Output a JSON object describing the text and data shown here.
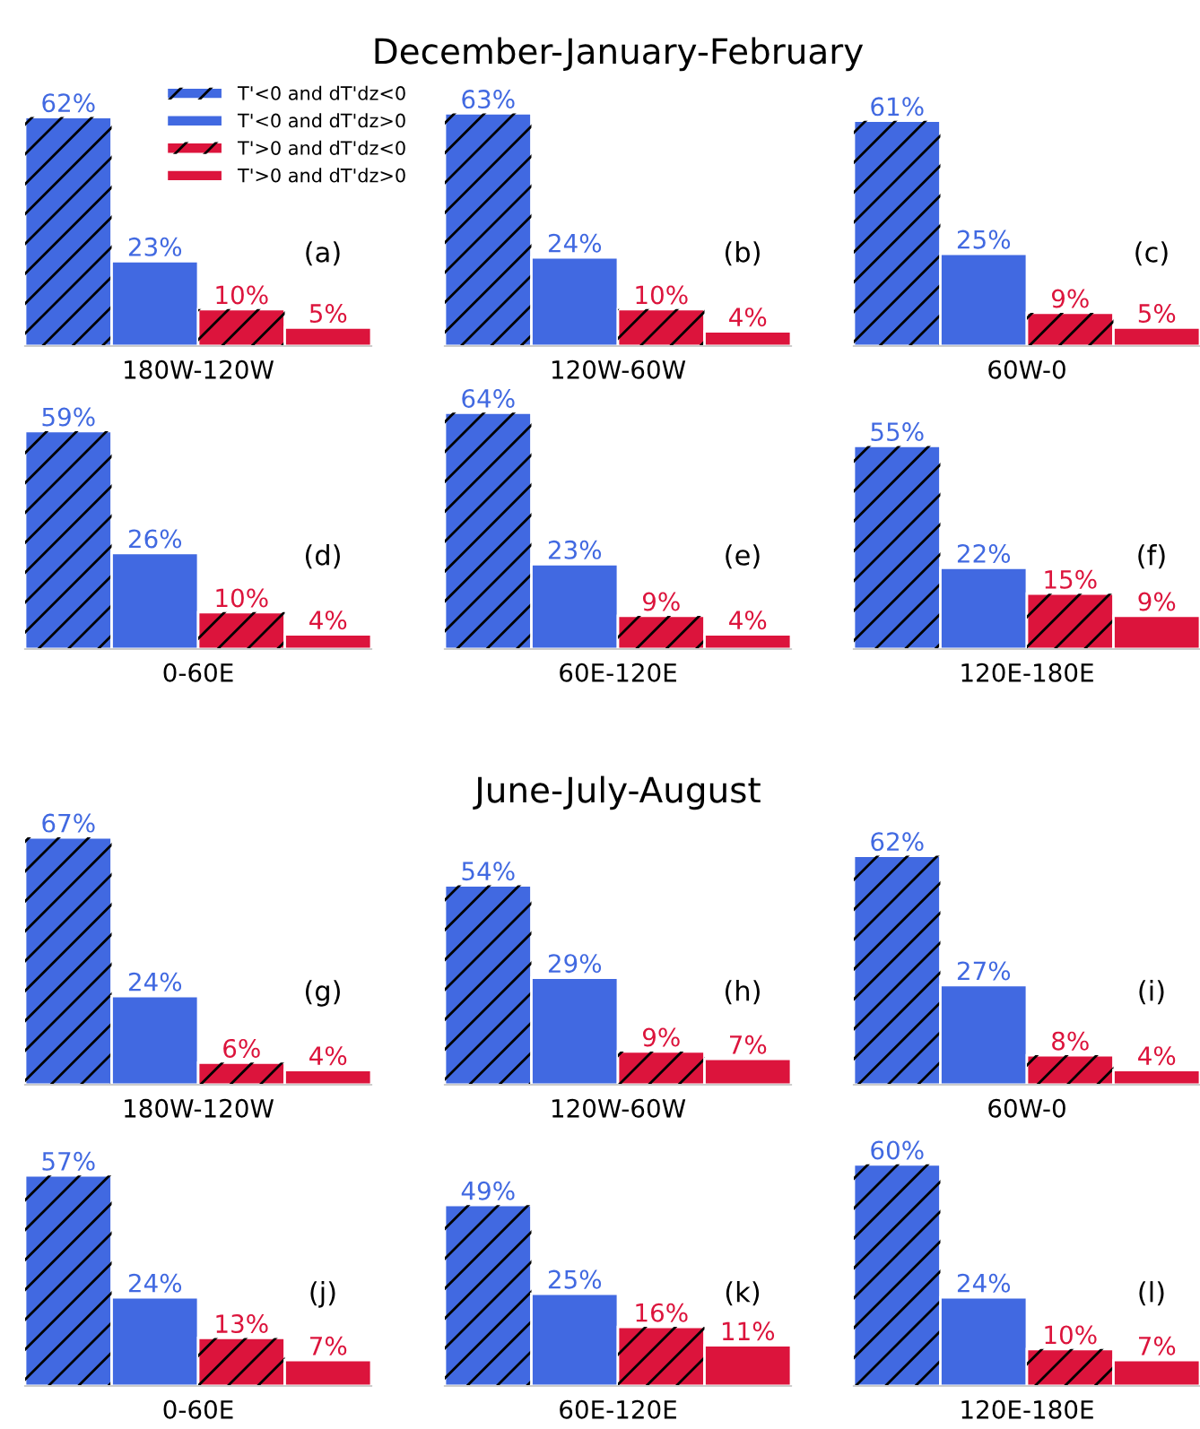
{
  "chart_data": [
    {
      "type": "bar",
      "xlabel": "180W-120W",
      "annotations": [
        "(a)"
      ],
      "categories": [
        null
      ],
      "legend": "top right",
      "series": [
        {
          "name": "T'<0 and dT'dz<0",
          "color": "#4169e1",
          "values": [
            62
          ],
          "value_labels": [
            "62%"
          ]
        },
        {
          "name": "T'<0 and dT'dz>0",
          "color": "#4169e1",
          "values": [
            23
          ],
          "value_labels": [
            "23%"
          ]
        },
        {
          "name": "T'>0 and dT'dz<0",
          "color": "#dc143c",
          "values": [
            10
          ],
          "value_labels": [
            "10%"
          ]
        },
        {
          "name": "T'>0 and dT'dz>0",
          "color": "#dc143c",
          "values": [
            5
          ],
          "value_labels": [
            "5%"
          ]
        }
      ]
    },
    {
      "type": "bar",
      "title": "December-January-February",
      "xlabel": "120W-60W",
      "annotations": [
        "(b)"
      ],
      "categories": [
        null
      ],
      "series": [
        {
          "color": "#4169e1",
          "values": [
            63
          ],
          "value_labels": [
            "63%"
          ]
        },
        {
          "color": "#4169e1",
          "values": [
            24
          ],
          "value_labels": [
            "24%"
          ]
        },
        {
          "color": "#dc143c",
          "values": [
            10
          ],
          "value_labels": [
            "10%"
          ]
        },
        {
          "color": "#dc143c",
          "values": [
            4
          ],
          "value_labels": [
            "4%"
          ]
        }
      ]
    },
    {
      "type": "bar",
      "xlabel": "60W-0",
      "annotations": [
        "(c)"
      ],
      "categories": [
        null
      ],
      "series": [
        {
          "color": "#4169e1",
          "values": [
            61
          ],
          "value_labels": [
            "61%"
          ]
        },
        {
          "color": "#4169e1",
          "values": [
            25
          ],
          "value_labels": [
            "25%"
          ]
        },
        {
          "color": "#dc143c",
          "values": [
            9
          ],
          "value_labels": [
            "9%"
          ]
        },
        {
          "color": "#dc143c",
          "values": [
            5
          ],
          "value_labels": [
            "5%"
          ]
        }
      ]
    },
    {
      "type": "bar",
      "xlabel": "0-60E",
      "annotations": [
        "(d)"
      ],
      "categories": [
        null
      ],
      "series": [
        {
          "color": "#4169e1",
          "values": [
            59
          ],
          "value_labels": [
            "59%"
          ]
        },
        {
          "color": "#4169e1",
          "values": [
            26
          ],
          "value_labels": [
            "26%"
          ]
        },
        {
          "color": "#dc143c",
          "values": [
            10
          ],
          "value_labels": [
            "10%"
          ]
        },
        {
          "color": "#dc143c",
          "values": [
            4
          ],
          "value_labels": [
            "4%"
          ]
        }
      ]
    },
    {
      "type": "bar",
      "xlabel": "60E-120E",
      "annotations": [
        "(e)"
      ],
      "categories": [
        null
      ],
      "series": [
        {
          "color": "#4169e1",
          "values": [
            64
          ],
          "value_labels": [
            "64%"
          ]
        },
        {
          "color": "#4169e1",
          "values": [
            23
          ],
          "value_labels": [
            "23%"
          ]
        },
        {
          "color": "#dc143c",
          "values": [
            9
          ],
          "value_labels": [
            "9%"
          ]
        },
        {
          "color": "#dc143c",
          "values": [
            4
          ],
          "value_labels": [
            "4%"
          ]
        }
      ]
    },
    {
      "type": "bar",
      "xlabel": "120E-180E",
      "annotations": [
        "(f)"
      ],
      "categories": [
        null
      ],
      "series": [
        {
          "color": "#4169e1",
          "values": [
            55
          ],
          "value_labels": [
            "55%"
          ]
        },
        {
          "color": "#4169e1",
          "values": [
            22
          ],
          "value_labels": [
            "22%"
          ]
        },
        {
          "color": "#dc143c",
          "values": [
            15
          ],
          "value_labels": [
            "15%"
          ]
        },
        {
          "color": "#dc143c",
          "values": [
            9
          ],
          "value_labels": [
            "9%"
          ]
        }
      ]
    },
    {
      "type": "bar",
      "xlabel": "180W-120W",
      "annotations": [
        "(g)"
      ],
      "categories": [
        null
      ],
      "series": [
        {
          "color": "#4169e1",
          "values": [
            67
          ],
          "value_labels": [
            "67%"
          ]
        },
        {
          "color": "#4169e1",
          "values": [
            24
          ],
          "value_labels": [
            "24%"
          ]
        },
        {
          "color": "#dc143c",
          "values": [
            6
          ],
          "value_labels": [
            "6%"
          ]
        },
        {
          "color": "#dc143c",
          "values": [
            4
          ],
          "value_labels": [
            "4%"
          ]
        }
      ]
    },
    {
      "type": "bar",
      "title": "June-July-August",
      "xlabel": "120W-60W",
      "annotations": [
        "(h)"
      ],
      "categories": [
        null
      ],
      "series": [
        {
          "color": "#4169e1",
          "values": [
            54
          ],
          "value_labels": [
            "54%"
          ]
        },
        {
          "color": "#4169e1",
          "values": [
            29
          ],
          "value_labels": [
            "29%"
          ]
        },
        {
          "color": "#dc143c",
          "values": [
            9
          ],
          "value_labels": [
            "9%"
          ]
        },
        {
          "color": "#dc143c",
          "values": [
            7
          ],
          "value_labels": [
            "7%"
          ]
        }
      ]
    },
    {
      "type": "bar",
      "xlabel": "60W-0",
      "annotations": [
        "(i)"
      ],
      "categories": [
        null
      ],
      "series": [
        {
          "color": "#4169e1",
          "values": [
            62
          ],
          "value_labels": [
            "62%"
          ]
        },
        {
          "color": "#4169e1",
          "values": [
            27
          ],
          "value_labels": [
            "27%"
          ]
        },
        {
          "color": "#dc143c",
          "values": [
            8
          ],
          "value_labels": [
            "8%"
          ]
        },
        {
          "color": "#dc143c",
          "values": [
            4
          ],
          "value_labels": [
            "4%"
          ]
        }
      ]
    },
    {
      "type": "bar",
      "xlabel": "0-60E",
      "annotations": [
        "(j)"
      ],
      "categories": [
        null
      ],
      "series": [
        {
          "color": "#4169e1",
          "values": [
            57
          ],
          "value_labels": [
            "57%"
          ]
        },
        {
          "color": "#4169e1",
          "values": [
            24
          ],
          "value_labels": [
            "24%"
          ]
        },
        {
          "color": "#dc143c",
          "values": [
            13
          ],
          "value_labels": [
            "13%"
          ]
        },
        {
          "color": "#dc143c",
          "values": [
            7
          ],
          "value_labels": [
            "7%"
          ]
        }
      ]
    },
    {
      "type": "bar",
      "xlabel": "60E-120E",
      "annotations": [
        "(k)"
      ],
      "categories": [
        null
      ],
      "series": [
        {
          "color": "#4169e1",
          "values": [
            49
          ],
          "value_labels": [
            "49%"
          ]
        },
        {
          "color": "#4169e1",
          "values": [
            25
          ],
          "value_labels": [
            "25%"
          ]
        },
        {
          "color": "#dc143c",
          "values": [
            16
          ],
          "value_labels": [
            "16%"
          ]
        },
        {
          "color": "#dc143c",
          "values": [
            11
          ],
          "value_labels": [
            "11%"
          ]
        }
      ]
    },
    {
      "type": "bar",
      "xlabel": "120E-180E",
      "annotations": [
        "(l)"
      ],
      "categories": [
        null
      ],
      "series": [
        {
          "color": "#4169e1",
          "values": [
            60
          ],
          "value_labels": [
            "60%"
          ]
        },
        {
          "color": "#4169e1",
          "values": [
            24
          ],
          "value_labels": [
            "24%"
          ]
        },
        {
          "color": "#dc143c",
          "values": [
            10
          ],
          "value_labels": [
            "10%"
          ]
        },
        {
          "color": "#dc143c",
          "values": [
            7
          ],
          "value_labels": [
            "7%"
          ]
        }
      ]
    }
  ]
}
